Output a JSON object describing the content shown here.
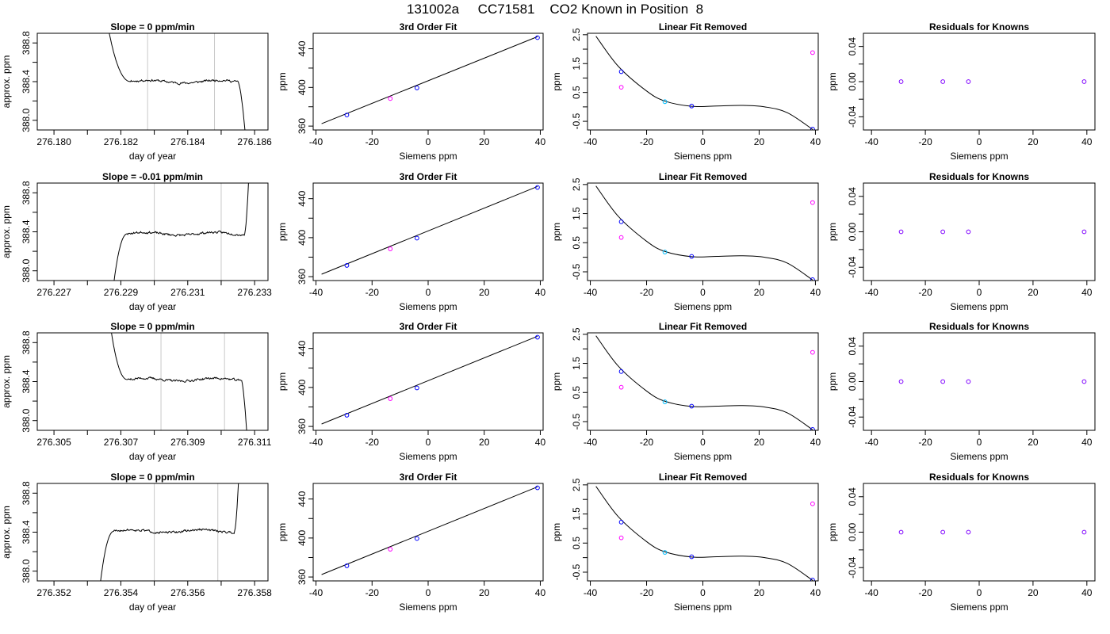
{
  "page": {
    "title": "131002a     CC71581    CO2 Known in Position  8"
  },
  "chart_data": [
    {
      "type": "line",
      "panel": "trace",
      "title": "Slope =  0  ppm/min",
      "xlabel": "day of year",
      "ylabel": "approx. ppm",
      "xlim": [
        276.1795,
        276.1864
      ],
      "ylim": [
        387.9,
        388.9
      ],
      "xticks": [
        276.18,
        276.181,
        276.182,
        276.183,
        276.184,
        276.185,
        276.186
      ],
      "xtick_labels": [
        "276.180",
        "",
        "276.182",
        "",
        "276.184",
        "",
        "276.186"
      ],
      "yticks": [
        388.0,
        388.2,
        388.4,
        388.6,
        388.8
      ],
      "ytick_labels": [
        "388.0",
        "",
        "388.4",
        "",
        "388.8"
      ],
      "vlines": [
        276.1828,
        276.1848
      ],
      "trace": {
        "start": 276.1815,
        "end": 276.1859,
        "start_value": 389.2,
        "plateau": 388.4,
        "shape": "fall-in-drop-out",
        "plateau_start": 276.1823,
        "plateau_end": 276.1855,
        "seed": 11
      }
    },
    {
      "type": "line",
      "panel": "fit",
      "title": "3rd Order Fit",
      "xlabel": "Siemens ppm",
      "ylabel": "ppm",
      "xlim": [
        -41,
        41
      ],
      "ylim": [
        356,
        456
      ],
      "xticks": [
        -40,
        -20,
        0,
        20,
        40
      ],
      "xtick_labels": [
        "-40",
        "-20",
        "0",
        "20",
        "40"
      ],
      "yticks": [
        360,
        380,
        400,
        420,
        440
      ],
      "ytick_labels": [
        "360",
        "",
        "400",
        "",
        "440"
      ],
      "line": {
        "x": [
          -38,
          39
        ],
        "y": [
          362.5,
          452.5
        ]
      },
      "points": [
        {
          "x": -29,
          "y": 371.5,
          "color": "#0000ff"
        },
        {
          "x": -13.5,
          "y": 388.5,
          "color": "#ff00ff"
        },
        {
          "x": -4,
          "y": 399.5,
          "color": "#0000ff"
        },
        {
          "x": 39,
          "y": 451.5,
          "color": "#0000ff"
        }
      ]
    },
    {
      "type": "line",
      "panel": "linear",
      "title": "Linear Fit Removed",
      "xlabel": "Siemens ppm",
      "ylabel": "ppm",
      "xlim": [
        -41,
        41
      ],
      "ylim": [
        -0.8,
        2.55
      ],
      "xticks": [
        -40,
        -20,
        0,
        20,
        40
      ],
      "xtick_labels": [
        "-40",
        "-20",
        "0",
        "20",
        "40"
      ],
      "yticks": [
        -0.5,
        0.0,
        0.5,
        1.0,
        1.5,
        2.0,
        2.5
      ],
      "ytick_labels": [
        "-0.5",
        "",
        "0.5",
        "",
        "1.5",
        "",
        "2.5"
      ],
      "curve": {
        "x": [
          -38,
          -30,
          -20,
          -13.5,
          -4,
          5,
          14,
          22,
          30,
          39
        ],
        "y": [
          2.45,
          1.4,
          0.55,
          0.2,
          0.02,
          0.03,
          0.05,
          0.0,
          -0.2,
          -0.78
        ]
      },
      "points": [
        {
          "x": -29,
          "y": 1.22,
          "color": "#0000ff"
        },
        {
          "x": -29,
          "y": 0.68,
          "color": "#ff00ff"
        },
        {
          "x": -13.5,
          "y": 0.18,
          "color": "#00bfff"
        },
        {
          "x": -4,
          "y": 0.03,
          "color": "#0000ff"
        },
        {
          "x": 39,
          "y": 1.88,
          "color": "#ff00ff"
        },
        {
          "x": 39,
          "y": -0.77,
          "color": "#0000ff"
        }
      ]
    },
    {
      "type": "scatter",
      "panel": "resid",
      "title": "Residuals for Knowns",
      "xlabel": "Siemens ppm",
      "ylabel": "ppm",
      "xlim": [
        -43,
        43
      ],
      "ylim": [
        -0.055,
        0.055
      ],
      "xticks": [
        -40,
        -20,
        0,
        20,
        40
      ],
      "xtick_labels": [
        "-40",
        "-20",
        "0",
        "20",
        "40"
      ],
      "yticks": [
        -0.04,
        -0.02,
        0.0,
        0.02,
        0.04
      ],
      "ytick_labels": [
        "-0.04",
        "",
        "0.00",
        "",
        "0.04"
      ],
      "points": [
        {
          "x": -29,
          "y": 0.0,
          "color": "#7f00ff"
        },
        {
          "x": -13.5,
          "y": 0.0,
          "color": "#7f00ff"
        },
        {
          "x": -4,
          "y": 0.0,
          "color": "#7f00ff"
        },
        {
          "x": 39,
          "y": 0.0,
          "color": "#7f00ff"
        }
      ]
    },
    {
      "type": "line",
      "panel": "trace",
      "title": "Slope =  -0.01  ppm/min",
      "xlabel": "day of year",
      "ylabel": "approx. ppm",
      "xlim": [
        276.2265,
        276.2334
      ],
      "ylim": [
        387.9,
        388.9
      ],
      "xticks": [
        276.227,
        276.228,
        276.229,
        276.23,
        276.231,
        276.232,
        276.233
      ],
      "xtick_labels": [
        "276.227",
        "",
        "276.229",
        "",
        "276.231",
        "",
        "276.233"
      ],
      "yticks": [
        388.0,
        388.2,
        388.4,
        388.6,
        388.8
      ],
      "ytick_labels": [
        "388.0",
        "",
        "388.4",
        "",
        "388.8"
      ],
      "vlines": [
        276.23,
        276.232
      ],
      "trace": {
        "start": 276.2287,
        "end": 276.2329,
        "start_value": 387.6,
        "plateau": 388.38,
        "shape": "rise-in-jump-out",
        "plateau_start": 276.2292,
        "plateau_end": 276.2327,
        "seed": 23
      }
    },
    {
      "type": "line",
      "panel": "fit",
      "title": "3rd Order Fit",
      "xlabel": "Siemens ppm",
      "ylabel": "ppm",
      "xlim": [
        -41,
        41
      ],
      "ylim": [
        356,
        456
      ],
      "xticks": [
        -40,
        -20,
        0,
        20,
        40
      ],
      "xtick_labels": [
        "-40",
        "-20",
        "0",
        "20",
        "40"
      ],
      "yticks": [
        360,
        380,
        400,
        420,
        440
      ],
      "ytick_labels": [
        "360",
        "",
        "400",
        "",
        "440"
      ],
      "line": {
        "x": [
          -38,
          39
        ],
        "y": [
          362.5,
          452.5
        ]
      },
      "points": [
        {
          "x": -29,
          "y": 371.5,
          "color": "#0000ff"
        },
        {
          "x": -13.5,
          "y": 388.5,
          "color": "#ff00ff"
        },
        {
          "x": -4,
          "y": 399.5,
          "color": "#0000ff"
        },
        {
          "x": 39,
          "y": 451.5,
          "color": "#0000ff"
        }
      ]
    },
    {
      "type": "line",
      "panel": "linear",
      "title": "Linear Fit Removed",
      "xlabel": "Siemens ppm",
      "ylabel": "ppm",
      "xlim": [
        -41,
        41
      ],
      "ylim": [
        -0.8,
        2.55
      ],
      "xticks": [
        -40,
        -20,
        0,
        20,
        40
      ],
      "xtick_labels": [
        "-40",
        "-20",
        "0",
        "20",
        "40"
      ],
      "yticks": [
        -0.5,
        0.0,
        0.5,
        1.0,
        1.5,
        2.0,
        2.5
      ],
      "ytick_labels": [
        "-0.5",
        "",
        "0.5",
        "",
        "1.5",
        "",
        "2.5"
      ],
      "curve": {
        "x": [
          -38,
          -30,
          -20,
          -13.5,
          -4,
          5,
          14,
          22,
          30,
          39
        ],
        "y": [
          2.45,
          1.4,
          0.55,
          0.2,
          0.02,
          0.03,
          0.05,
          0.0,
          -0.2,
          -0.78
        ]
      },
      "points": [
        {
          "x": -29,
          "y": 1.22,
          "color": "#0000ff"
        },
        {
          "x": -29,
          "y": 0.68,
          "color": "#ff00ff"
        },
        {
          "x": -13.5,
          "y": 0.18,
          "color": "#00bfff"
        },
        {
          "x": -4,
          "y": 0.03,
          "color": "#0000ff"
        },
        {
          "x": 39,
          "y": 1.88,
          "color": "#ff00ff"
        },
        {
          "x": 39,
          "y": -0.77,
          "color": "#0000ff"
        }
      ]
    },
    {
      "type": "scatter",
      "panel": "resid",
      "title": "Residuals for Knowns",
      "xlabel": "Siemens ppm",
      "ylabel": "ppm",
      "xlim": [
        -43,
        43
      ],
      "ylim": [
        -0.055,
        0.055
      ],
      "xticks": [
        -40,
        -20,
        0,
        20,
        40
      ],
      "xtick_labels": [
        "-40",
        "-20",
        "0",
        "20",
        "40"
      ],
      "yticks": [
        -0.04,
        -0.02,
        0.0,
        0.02,
        0.04
      ],
      "ytick_labels": [
        "-0.04",
        "",
        "0.00",
        "",
        "0.04"
      ],
      "points": [
        {
          "x": -29,
          "y": 0.0,
          "color": "#7f00ff"
        },
        {
          "x": -13.5,
          "y": 0.0,
          "color": "#7f00ff"
        },
        {
          "x": -4,
          "y": 0.0,
          "color": "#7f00ff"
        },
        {
          "x": 39,
          "y": 0.0,
          "color": "#7f00ff"
        }
      ]
    },
    {
      "type": "line",
      "panel": "trace",
      "title": "Slope =  0  ppm/min",
      "xlabel": "day of year",
      "ylabel": "approx. ppm",
      "xlim": [
        276.3045,
        276.3114
      ],
      "ylim": [
        387.9,
        388.9
      ],
      "xticks": [
        276.305,
        276.306,
        276.307,
        276.308,
        276.309,
        276.31,
        276.311
      ],
      "xtick_labels": [
        "276.305",
        "",
        "276.307",
        "",
        "276.309",
        "",
        "276.311"
      ],
      "yticks": [
        388.0,
        388.2,
        388.4,
        388.6,
        388.8
      ],
      "ytick_labels": [
        "388.0",
        "",
        "388.4",
        "",
        "388.8"
      ],
      "vlines": [
        276.3082,
        276.3101
      ],
      "trace": {
        "start": 276.3066,
        "end": 276.3109,
        "start_value": 389.2,
        "plateau": 388.42,
        "shape": "fall-in-drop-out",
        "plateau_start": 276.3072,
        "plateau_end": 276.3106,
        "seed": 37
      }
    },
    {
      "type": "line",
      "panel": "fit",
      "title": "3rd Order Fit",
      "xlabel": "Siemens ppm",
      "ylabel": "ppm",
      "xlim": [
        -41,
        41
      ],
      "ylim": [
        356,
        456
      ],
      "xticks": [
        -40,
        -20,
        0,
        20,
        40
      ],
      "xtick_labels": [
        "-40",
        "-20",
        "0",
        "20",
        "40"
      ],
      "yticks": [
        360,
        380,
        400,
        420,
        440
      ],
      "ytick_labels": [
        "360",
        "",
        "400",
        "",
        "440"
      ],
      "line": {
        "x": [
          -38,
          39
        ],
        "y": [
          362.5,
          452.5
        ]
      },
      "points": [
        {
          "x": -29,
          "y": 371.5,
          "color": "#0000ff"
        },
        {
          "x": -13.5,
          "y": 388.5,
          "color": "#ff00ff"
        },
        {
          "x": -4,
          "y": 399.5,
          "color": "#0000ff"
        },
        {
          "x": 39,
          "y": 451.5,
          "color": "#0000ff"
        }
      ]
    },
    {
      "type": "line",
      "panel": "linear",
      "title": "Linear Fit Removed",
      "xlabel": "Siemens ppm",
      "ylabel": "ppm",
      "xlim": [
        -41,
        41
      ],
      "ylim": [
        -0.8,
        2.55
      ],
      "xticks": [
        -40,
        -20,
        0,
        20,
        40
      ],
      "xtick_labels": [
        "-40",
        "-20",
        "0",
        "20",
        "40"
      ],
      "yticks": [
        -0.5,
        0.0,
        0.5,
        1.0,
        1.5,
        2.0,
        2.5
      ],
      "ytick_labels": [
        "-0.5",
        "",
        "0.5",
        "",
        "1.5",
        "",
        "2.5"
      ],
      "curve": {
        "x": [
          -38,
          -30,
          -20,
          -13.5,
          -4,
          5,
          14,
          22,
          30,
          39
        ],
        "y": [
          2.45,
          1.4,
          0.55,
          0.2,
          0.02,
          0.03,
          0.05,
          0.0,
          -0.2,
          -0.78
        ]
      },
      "points": [
        {
          "x": -29,
          "y": 1.22,
          "color": "#0000ff"
        },
        {
          "x": -29,
          "y": 0.68,
          "color": "#ff00ff"
        },
        {
          "x": -13.5,
          "y": 0.18,
          "color": "#00bfff"
        },
        {
          "x": -4,
          "y": 0.03,
          "color": "#0000ff"
        },
        {
          "x": 39,
          "y": 1.88,
          "color": "#ff00ff"
        },
        {
          "x": 39,
          "y": -0.77,
          "color": "#0000ff"
        }
      ]
    },
    {
      "type": "scatter",
      "panel": "resid",
      "title": "Residuals for Knowns",
      "xlabel": "Siemens ppm",
      "ylabel": "ppm",
      "xlim": [
        -43,
        43
      ],
      "ylim": [
        -0.055,
        0.055
      ],
      "xticks": [
        -40,
        -20,
        0,
        20,
        40
      ],
      "xtick_labels": [
        "-40",
        "-20",
        "0",
        "20",
        "40"
      ],
      "yticks": [
        -0.04,
        -0.02,
        0.0,
        0.02,
        0.04
      ],
      "ytick_labels": [
        "-0.04",
        "",
        "0.00",
        "",
        "0.04"
      ],
      "points": [
        {
          "x": -29,
          "y": 0.0,
          "color": "#7f00ff"
        },
        {
          "x": -13.5,
          "y": 0.0,
          "color": "#7f00ff"
        },
        {
          "x": -4,
          "y": 0.0,
          "color": "#7f00ff"
        },
        {
          "x": 39,
          "y": 0.0,
          "color": "#7f00ff"
        }
      ]
    },
    {
      "type": "line",
      "panel": "trace",
      "title": "Slope =  0  ppm/min",
      "xlabel": "day of year",
      "ylabel": "approx. ppm",
      "xlim": [
        276.3515,
        276.3584
      ],
      "ylim": [
        387.9,
        388.9
      ],
      "xticks": [
        276.352,
        276.353,
        276.354,
        276.355,
        276.356,
        276.357,
        276.358
      ],
      "xtick_labels": [
        "276.352",
        "",
        "276.354",
        "",
        "276.356",
        "",
        "276.358"
      ],
      "yticks": [
        388.0,
        388.2,
        388.4,
        388.6,
        388.8
      ],
      "ytick_labels": [
        "388.0",
        "",
        "388.4",
        "",
        "388.8"
      ],
      "vlines": [
        276.355,
        276.3569
      ],
      "trace": {
        "start": 276.3533,
        "end": 276.3576,
        "start_value": 387.6,
        "plateau": 388.41,
        "shape": "rise-in-jump-out",
        "plateau_start": 276.3538,
        "plateau_end": 276.3574,
        "seed": 51
      }
    },
    {
      "type": "line",
      "panel": "fit",
      "title": "3rd Order Fit",
      "xlabel": "Siemens ppm",
      "ylabel": "ppm",
      "xlim": [
        -41,
        41
      ],
      "ylim": [
        356,
        456
      ],
      "xticks": [
        -40,
        -20,
        0,
        20,
        40
      ],
      "xtick_labels": [
        "-40",
        "-20",
        "0",
        "20",
        "40"
      ],
      "yticks": [
        360,
        380,
        400,
        420,
        440
      ],
      "ytick_labels": [
        "360",
        "",
        "400",
        "",
        "440"
      ],
      "line": {
        "x": [
          -38,
          39
        ],
        "y": [
          362.5,
          452.5
        ]
      },
      "points": [
        {
          "x": -29,
          "y": 371.5,
          "color": "#0000ff"
        },
        {
          "x": -13.5,
          "y": 388.5,
          "color": "#ff00ff"
        },
        {
          "x": -4,
          "y": 399.5,
          "color": "#0000ff"
        },
        {
          "x": 39,
          "y": 451.5,
          "color": "#0000ff"
        }
      ]
    },
    {
      "type": "line",
      "panel": "linear",
      "title": "Linear Fit Removed",
      "xlabel": "Siemens ppm",
      "ylabel": "ppm",
      "xlim": [
        -41,
        41
      ],
      "ylim": [
        -0.8,
        2.55
      ],
      "xticks": [
        -40,
        -20,
        0,
        20,
        40
      ],
      "xtick_labels": [
        "-40",
        "-20",
        "0",
        "20",
        "40"
      ],
      "yticks": [
        -0.5,
        0.0,
        0.5,
        1.0,
        1.5,
        2.0,
        2.5
      ],
      "ytick_labels": [
        "-0.5",
        "",
        "0.5",
        "",
        "1.5",
        "",
        "2.5"
      ],
      "curve": {
        "x": [
          -38,
          -30,
          -20,
          -13.5,
          -4,
          5,
          14,
          22,
          30,
          39
        ],
        "y": [
          2.45,
          1.4,
          0.55,
          0.2,
          0.02,
          0.03,
          0.05,
          0.0,
          -0.2,
          -0.78
        ]
      },
      "points": [
        {
          "x": -29,
          "y": 1.22,
          "color": "#0000ff"
        },
        {
          "x": -29,
          "y": 0.68,
          "color": "#ff00ff"
        },
        {
          "x": -13.5,
          "y": 0.18,
          "color": "#00bfff"
        },
        {
          "x": -4,
          "y": 0.03,
          "color": "#0000ff"
        },
        {
          "x": 39,
          "y": 1.85,
          "color": "#ff00ff"
        },
        {
          "x": 39,
          "y": -0.77,
          "color": "#0000ff"
        }
      ]
    },
    {
      "type": "scatter",
      "panel": "resid",
      "title": "Residuals for Knowns",
      "xlabel": "Siemens ppm",
      "ylabel": "ppm",
      "xlim": [
        -43,
        43
      ],
      "ylim": [
        -0.055,
        0.055
      ],
      "xticks": [
        -40,
        -20,
        0,
        20,
        40
      ],
      "xtick_labels": [
        "-40",
        "-20",
        "0",
        "20",
        "40"
      ],
      "yticks": [
        -0.04,
        -0.02,
        0.0,
        0.02,
        0.04
      ],
      "ytick_labels": [
        "-0.04",
        "",
        "0.00",
        "",
        "0.04"
      ],
      "points": [
        {
          "x": -29,
          "y": 0.0,
          "color": "#7f00ff"
        },
        {
          "x": -13.5,
          "y": 0.0,
          "color": "#7f00ff"
        },
        {
          "x": -4,
          "y": 0.0,
          "color": "#7f00ff"
        },
        {
          "x": 39,
          "y": 0.0,
          "color": "#7f00ff"
        }
      ]
    }
  ]
}
